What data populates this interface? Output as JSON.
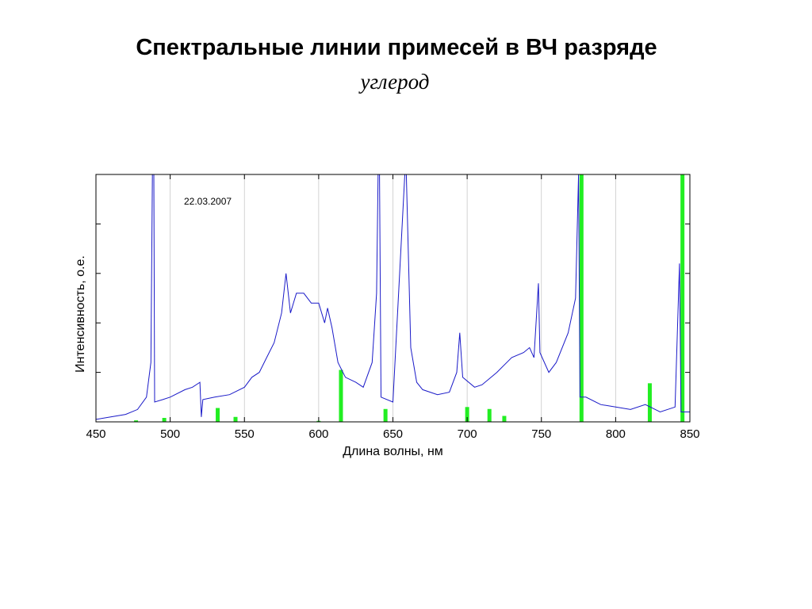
{
  "title": "Спектральные линии примесей в ВЧ разряде",
  "subtitle": "углерод",
  "chart_data": {
    "type": "line",
    "xlabel": "Длина волны, нм",
    "ylabel": "Интенсивность, о.е.",
    "xlim": [
      450,
      850
    ],
    "ylim": [
      0,
      5
    ],
    "x_ticks": [
      450,
      500,
      550,
      600,
      650,
      700,
      750,
      800,
      850
    ],
    "grid": "vertical",
    "annotation": "22.03.2007",
    "colors": {
      "spectrum": "#1a1ac8",
      "lines": "#22ee22",
      "grid": "#c8c8c8"
    },
    "series": [
      {
        "type": "line",
        "color": "#1a1ac8",
        "points": [
          [
            450,
            0.05
          ],
          [
            460,
            0.1
          ],
          [
            470,
            0.15
          ],
          [
            478,
            0.25
          ],
          [
            484,
            0.5
          ],
          [
            487,
            1.2
          ],
          [
            488,
            5.0
          ],
          [
            489,
            5.0
          ],
          [
            489.5,
            0.4
          ],
          [
            495,
            0.45
          ],
          [
            500,
            0.5
          ],
          [
            510,
            0.65
          ],
          [
            515,
            0.7
          ],
          [
            520,
            0.8
          ],
          [
            521,
            0.1
          ],
          [
            522,
            0.45
          ],
          [
            530,
            0.5
          ],
          [
            540,
            0.55
          ],
          [
            550,
            0.7
          ],
          [
            555,
            0.9
          ],
          [
            560,
            1.0
          ],
          [
            565,
            1.3
          ],
          [
            570,
            1.6
          ],
          [
            575,
            2.2
          ],
          [
            578,
            3.0
          ],
          [
            581,
            2.2
          ],
          [
            585,
            2.6
          ],
          [
            590,
            2.6
          ],
          [
            595,
            2.4
          ],
          [
            600,
            2.4
          ],
          [
            604,
            2.0
          ],
          [
            606,
            2.3
          ],
          [
            609,
            1.9
          ],
          [
            613,
            1.2
          ],
          [
            618,
            0.9
          ],
          [
            625,
            0.8
          ],
          [
            630,
            0.7
          ],
          [
            636,
            1.2
          ],
          [
            639,
            2.6
          ],
          [
            640,
            5.0
          ],
          [
            641,
            5.0
          ],
          [
            642,
            0.5
          ],
          [
            650,
            0.4
          ],
          [
            658,
            5.0
          ],
          [
            659,
            5.0
          ],
          [
            662,
            1.5
          ],
          [
            666,
            0.8
          ],
          [
            670,
            0.65
          ],
          [
            680,
            0.55
          ],
          [
            688,
            0.6
          ],
          [
            693,
            1.0
          ],
          [
            695,
            1.8
          ],
          [
            697,
            0.9
          ],
          [
            705,
            0.7
          ],
          [
            710,
            0.75
          ],
          [
            720,
            1.0
          ],
          [
            730,
            1.3
          ],
          [
            738,
            1.4
          ],
          [
            742,
            1.5
          ],
          [
            745,
            1.3
          ],
          [
            748,
            2.8
          ],
          [
            749,
            1.4
          ],
          [
            755,
            1.0
          ],
          [
            760,
            1.2
          ],
          [
            768,
            1.8
          ],
          [
            773,
            2.5
          ],
          [
            775,
            5.0
          ],
          [
            776,
            0.5
          ],
          [
            780,
            0.5
          ],
          [
            790,
            0.35
          ],
          [
            800,
            0.3
          ],
          [
            810,
            0.25
          ],
          [
            820,
            0.35
          ],
          [
            830,
            0.2
          ],
          [
            840,
            0.3
          ],
          [
            843,
            3.2
          ],
          [
            844,
            0.2
          ],
          [
            850,
            0.2
          ]
        ]
      },
      {
        "type": "lines",
        "color": "#22ee22",
        "points": [
          [
            477,
            0.03
          ],
          [
            496,
            0.08
          ],
          [
            532,
            0.28
          ],
          [
            544,
            0.1
          ],
          [
            600,
            0.02
          ],
          [
            615,
            1.05
          ],
          [
            645,
            0.26
          ],
          [
            700,
            0.3
          ],
          [
            715,
            0.26
          ],
          [
            725,
            0.12
          ],
          [
            777,
            5.0
          ],
          [
            823,
            0.78
          ],
          [
            845,
            5.0
          ]
        ]
      }
    ]
  }
}
